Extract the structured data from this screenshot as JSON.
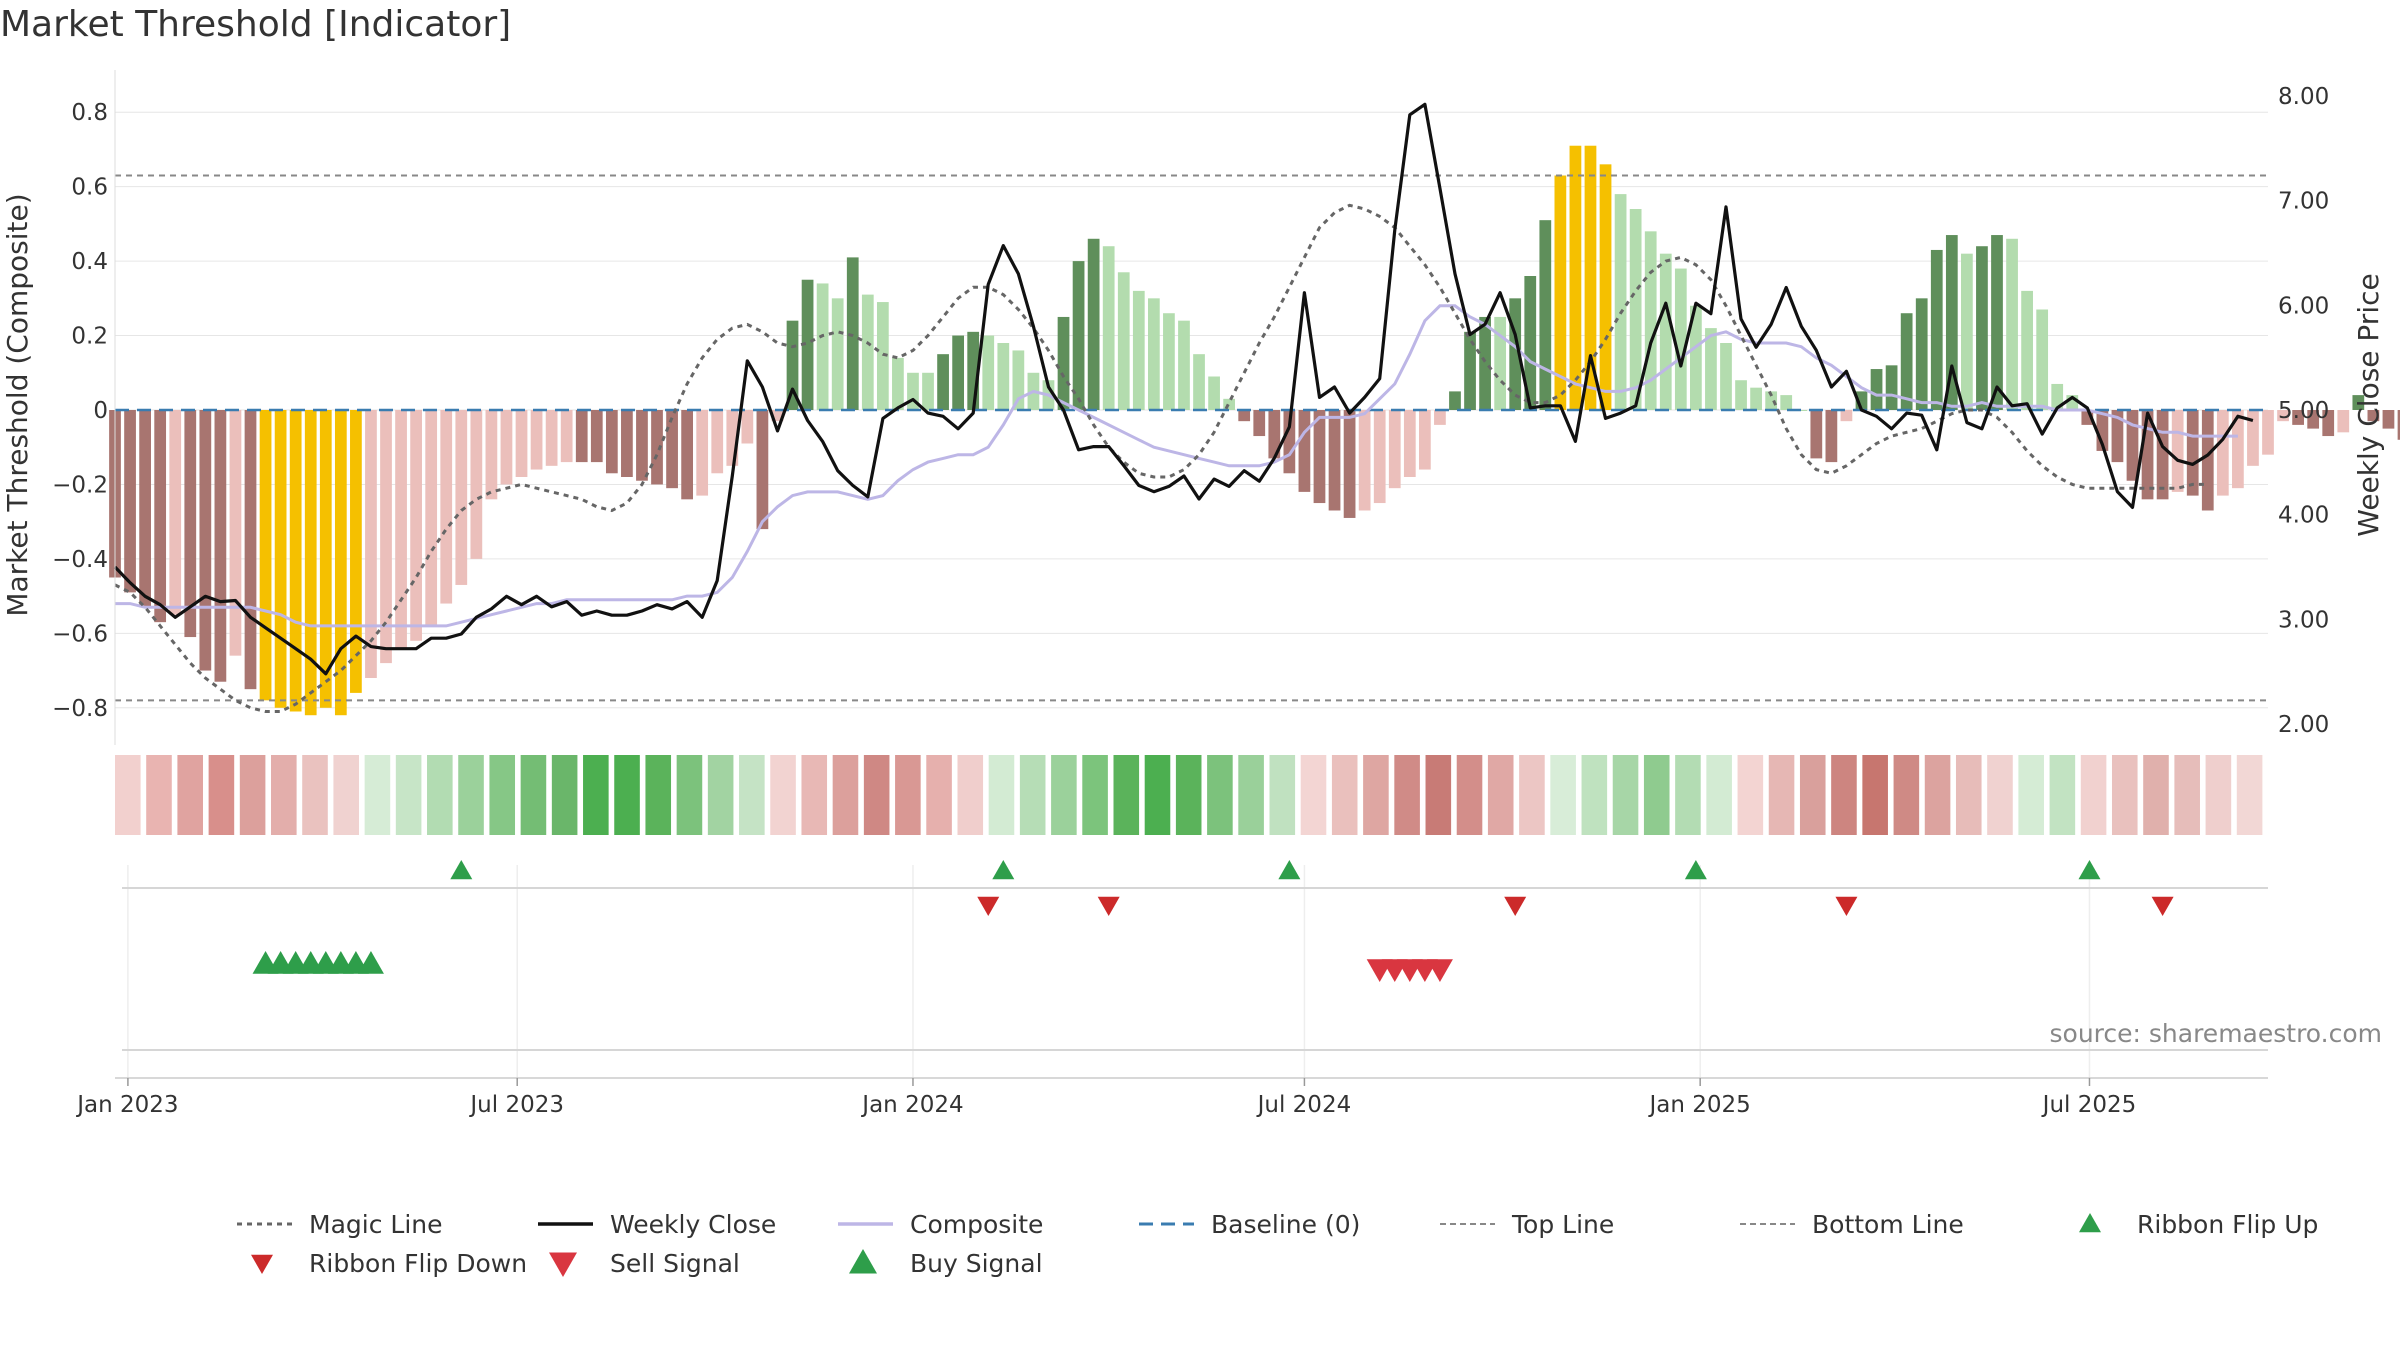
{
  "chart_data": {
    "type": "bar",
    "title": "Market Threshold [Indicator]",
    "ylabel_left": "Market Threshold (Composite)",
    "ylabel_right": "Weekly Close Price",
    "ylim_left": [
      -0.9,
      0.9
    ],
    "ylim_right": [
      1.8,
      8.2
    ],
    "yticks_left": [
      "0.8",
      "0.6",
      "0.4",
      "0.2",
      "0",
      "−0.2",
      "−0.4",
      "−0.6",
      "−0.8"
    ],
    "yticks_left_values": [
      0.8,
      0.6,
      0.4,
      0.2,
      0,
      -0.2,
      -0.4,
      -0.6,
      -0.8
    ],
    "yticks_right": [
      "8.00",
      "7.00",
      "6.00",
      "5.00",
      "4.00",
      "3.00",
      "2.00"
    ],
    "yticks_right_values": [
      8,
      7,
      6,
      5,
      4,
      3,
      2
    ],
    "xticks": [
      "Jan 2023",
      "Jul 2023",
      "Jan 2024",
      "Jul 2024",
      "Jan 2025",
      "Jul 2025"
    ],
    "xticks_dates": [
      "2023-01-01",
      "2023-07-01",
      "2024-01-01",
      "2024-07-01",
      "2025-01-01",
      "2025-07-01"
    ],
    "x_range": [
      "2022-12-26",
      "2025-09-22"
    ],
    "week_start": "2022-12-26",
    "top_line": 0.63,
    "bottom_line": -0.78,
    "baseline": 0,
    "composite_bars": [
      -0.45,
      -0.49,
      -0.53,
      -0.57,
      -0.55,
      -0.61,
      -0.7,
      -0.73,
      -0.66,
      -0.75,
      -0.78,
      -0.8,
      -0.81,
      -0.82,
      -0.8,
      -0.82,
      -0.76,
      -0.72,
      -0.68,
      -0.64,
      -0.62,
      -0.58,
      -0.52,
      -0.47,
      -0.4,
      -0.24,
      -0.2,
      -0.18,
      -0.16,
      -0.15,
      -0.14,
      -0.14,
      -0.14,
      -0.17,
      -0.18,
      -0.19,
      -0.2,
      -0.21,
      -0.24,
      -0.23,
      -0.17,
      -0.15,
      -0.09,
      -0.32,
      -0.03,
      0.24,
      0.35,
      0.34,
      0.3,
      0.41,
      0.31,
      0.29,
      0.14,
      0.1,
      0.1,
      0.15,
      0.2,
      0.21,
      0.2,
      0.18,
      0.16,
      0.1,
      0.08,
      0.25,
      0.4,
      0.46,
      0.44,
      0.37,
      0.32,
      0.3,
      0.26,
      0.24,
      0.15,
      0.09,
      0.03,
      -0.03,
      -0.07,
      -0.13,
      -0.17,
      -0.22,
      -0.25,
      -0.27,
      -0.29,
      -0.27,
      -0.25,
      -0.21,
      -0.18,
      -0.16,
      -0.04,
      0.05,
      0.21,
      0.25,
      0.25,
      0.3,
      0.36,
      0.51,
      0.63,
      0.71,
      0.71,
      0.66,
      0.58,
      0.54,
      0.48,
      0.42,
      0.38,
      0.28,
      0.22,
      0.18,
      0.08,
      0.06,
      0.05,
      0.04,
      0,
      -0.13,
      -0.14,
      -0.03,
      0.05,
      0.11,
      0.12,
      0.26,
      0.3,
      0.43,
      0.47,
      0.42,
      0.44,
      0.47,
      0.46,
      0.32,
      0.27,
      0.07,
      0.04,
      -0.04,
      -0.11,
      -0.14,
      -0.19,
      -0.24,
      -0.24,
      -0.22,
      -0.23,
      -0.27,
      -0.23,
      -0.21,
      -0.15,
      -0.12,
      -0.03,
      -0.04,
      -0.05,
      -0.07,
      -0.06,
      0.04,
      -0.03,
      -0.05,
      -0.08,
      -0.11,
      -0.14,
      -0.2,
      -0.27,
      -0.28,
      -0.18
    ],
    "weekly_close": [
      3.5,
      3.35,
      3.22,
      3.14,
      3.02,
      3.12,
      3.22,
      3.17,
      3.18,
      3.02,
      2.92,
      2.82,
      2.72,
      2.62,
      2.48,
      2.72,
      2.84,
      2.74,
      2.72,
      2.72,
      2.72,
      2.82,
      2.82,
      2.86,
      3.02,
      3.1,
      3.22,
      3.14,
      3.22,
      3.12,
      3.17,
      3.04,
      3.08,
      3.04,
      3.04,
      3.08,
      3.14,
      3.1,
      3.17,
      3.02,
      3.37,
      4.37,
      5.47,
      5.22,
      4.8,
      5.2,
      4.9,
      4.7,
      4.42,
      4.28,
      4.17,
      4.92,
      5.02,
      5.1,
      4.97,
      4.94,
      4.82,
      4.97,
      6.2,
      6.57,
      6.3,
      5.8,
      5.22,
      5.0,
      4.62,
      4.65,
      4.65,
      4.47,
      4.28,
      4.22,
      4.27,
      4.37,
      4.15,
      4.34,
      4.27,
      4.42,
      4.32,
      4.54,
      4.84,
      6.12,
      5.12,
      5.22,
      4.97,
      5.12,
      5.3,
      6.72,
      7.82,
      7.92,
      7.12,
      6.3,
      5.72,
      5.82,
      6.12,
      5.72,
      5.02,
      5.04,
      5.04,
      4.7,
      5.52,
      4.92,
      4.97,
      5.04,
      5.64,
      6.02,
      5.42,
      6.02,
      5.92,
      6.94,
      5.87,
      5.6,
      5.82,
      6.17,
      5.8,
      5.57,
      5.22,
      5.37,
      5.0,
      4.94,
      4.82,
      4.97,
      4.95,
      4.62,
      5.42,
      4.88,
      4.82,
      5.22,
      5.04,
      5.06,
      4.77,
      5.02,
      5.12,
      5.02,
      4.67,
      4.22,
      4.07,
      4.97,
      4.65,
      4.52,
      4.48,
      4.57,
      4.72,
      4.94,
      4.9
    ],
    "composite_line": [
      -0.52,
      -0.52,
      -0.53,
      -0.53,
      -0.53,
      -0.53,
      -0.53,
      -0.53,
      -0.53,
      -0.53,
      -0.54,
      -0.55,
      -0.57,
      -0.58,
      -0.58,
      -0.58,
      -0.58,
      -0.58,
      -0.58,
      -0.58,
      -0.58,
      -0.58,
      -0.58,
      -0.57,
      -0.56,
      -0.55,
      -0.54,
      -0.53,
      -0.52,
      -0.52,
      -0.51,
      -0.51,
      -0.51,
      -0.51,
      -0.51,
      -0.51,
      -0.51,
      -0.51,
      -0.5,
      -0.5,
      -0.49,
      -0.45,
      -0.38,
      -0.3,
      -0.26,
      -0.23,
      -0.22,
      -0.22,
      -0.22,
      -0.23,
      -0.24,
      -0.23,
      -0.19,
      -0.16,
      -0.14,
      -0.13,
      -0.12,
      -0.12,
      -0.1,
      -0.04,
      0.03,
      0.05,
      0.04,
      0.02,
      0,
      -0.02,
      -0.04,
      -0.06,
      -0.08,
      -0.1,
      -0.11,
      -0.12,
      -0.13,
      -0.14,
      -0.15,
      -0.15,
      -0.15,
      -0.14,
      -0.12,
      -0.06,
      -0.02,
      -0.02,
      -0.02,
      -0.01,
      0.03,
      0.07,
      0.15,
      0.24,
      0.28,
      0.28,
      0.25,
      0.23,
      0.2,
      0.17,
      0.13,
      0.11,
      0.09,
      0.07,
      0.06,
      0.05,
      0.05,
      0.06,
      0.08,
      0.11,
      0.14,
      0.17,
      0.2,
      0.21,
      0.19,
      0.18,
      0.18,
      0.18,
      0.17,
      0.14,
      0.12,
      0.09,
      0.06,
      0.04,
      0.04,
      0.03,
      0.02,
      0.02,
      0.01,
      0.01,
      0.02,
      0.01,
      0.01,
      0.01,
      0.01,
      0.0,
      0.0,
      0.0,
      -0.01,
      -0.02,
      -0.04,
      -0.05,
      -0.06,
      -0.06,
      -0.07,
      -0.07,
      -0.07,
      -0.07
    ],
    "magic_line": [
      -0.47,
      -0.49,
      -0.53,
      -0.58,
      -0.63,
      -0.68,
      -0.72,
      -0.75,
      -0.78,
      -0.8,
      -0.81,
      -0.81,
      -0.79,
      -0.76,
      -0.73,
      -0.7,
      -0.66,
      -0.62,
      -0.57,
      -0.51,
      -0.45,
      -0.38,
      -0.32,
      -0.27,
      -0.24,
      -0.22,
      -0.21,
      -0.2,
      -0.21,
      -0.22,
      -0.23,
      -0.24,
      -0.26,
      -0.27,
      -0.25,
      -0.2,
      -0.12,
      -0.02,
      0.07,
      0.14,
      0.19,
      0.22,
      0.23,
      0.21,
      0.18,
      0.17,
      0.18,
      0.2,
      0.21,
      0.2,
      0.18,
      0.15,
      0.14,
      0.16,
      0.2,
      0.25,
      0.3,
      0.33,
      0.33,
      0.31,
      0.27,
      0.22,
      0.16,
      0.09,
      0.03,
      -0.04,
      -0.1,
      -0.14,
      -0.17,
      -0.18,
      -0.18,
      -0.16,
      -0.12,
      -0.06,
      0.02,
      0.1,
      0.18,
      0.25,
      0.33,
      0.41,
      0.49,
      0.53,
      0.55,
      0.54,
      0.52,
      0.49,
      0.44,
      0.39,
      0.33,
      0.26,
      0.19,
      0.13,
      0.08,
      0.04,
      0.02,
      0.02,
      0.04,
      0.08,
      0.13,
      0.19,
      0.26,
      0.32,
      0.37,
      0.4,
      0.41,
      0.39,
      0.35,
      0.28,
      0.2,
      0.12,
      0.04,
      -0.05,
      -0.12,
      -0.16,
      -0.17,
      -0.15,
      -0.12,
      -0.09,
      -0.07,
      -0.06,
      -0.05,
      -0.03,
      -0.01,
      0.0,
      0.0,
      -0.02,
      -0.06,
      -0.11,
      -0.15,
      -0.18,
      -0.2,
      -0.21,
      -0.21,
      -0.21,
      -0.21,
      -0.21,
      -0.21,
      -0.21,
      -0.2,
      -0.2
    ],
    "ribbon_flip_up": [
      "2023-06-05",
      "2024-02-12",
      "2024-06-24",
      "2024-12-30",
      "2025-07-01"
    ],
    "ribbon_flip_down": [
      "2024-02-05",
      "2024-04-01",
      "2024-10-07",
      "2025-03-10",
      "2025-08-04"
    ],
    "buy_signal": [
      "2023-03-06",
      "2023-03-13",
      "2023-03-20",
      "2023-03-27",
      "2023-04-03",
      "2023-04-10",
      "2023-04-17",
      "2023-04-24"
    ],
    "sell_signal": [
      "2024-08-05",
      "2024-08-12",
      "2024-08-19",
      "2024-08-26",
      "2024-09-02"
    ],
    "ribbon_colors": [
      "#f2d0ce",
      "#e9b4b1",
      "#e0a3a0",
      "#d88f8b",
      "#dca09c",
      "#e3aeab",
      "#eac2bf",
      "#f0d2d0",
      "#d6ecd6",
      "#c7e5c7",
      "#b2dcb2",
      "#9bd19b",
      "#86c786",
      "#74bd74",
      "#6ab66a",
      "#4caf50",
      "#4caf50",
      "#5bb35b",
      "#7cc27c",
      "#a2d3a2",
      "#c5e3c5",
      "#f2d3d1",
      "#e8b8b5",
      "#dca09c",
      "#cf8884",
      "#d99894",
      "#e6b0ad",
      "#f0cecc",
      "#d3ebd3",
      "#b6ddb6",
      "#9bd19b",
      "#7cc47c",
      "#5bb35b",
      "#4caf50",
      "#5bb35b",
      "#7cc27c",
      "#9ad09a",
      "#c0e1c0",
      "#f3d5d3",
      "#eac0bd",
      "#dea6a2",
      "#d08b87",
      "#c87b76",
      "#d38e8a",
      "#e0a8a5",
      "#ecc6c4",
      "#d8edd8",
      "#bfe2bf",
      "#a7d6a7",
      "#8fcb8f",
      "#b3dcb3",
      "#d3ebd3",
      "#f3d4d2",
      "#e6b7b4",
      "#d9a09c",
      "#cd8580",
      "#c7766f",
      "#cf8a85",
      "#dca39f",
      "#e7bcb9",
      "#f0d2d0",
      "#d5ecd5",
      "#c2e3c2",
      "#f1d1cf",
      "#e9c1be",
      "#e0b0ac",
      "#e6bdba",
      "#efcfcd",
      "#f2d7d5"
    ],
    "legend": [
      "Magic Line",
      "Weekly Close",
      "Composite",
      "Baseline (0)",
      "Top Line",
      "Bottom Line",
      "Ribbon Flip Up",
      "Ribbon Flip Down",
      "Sell Signal",
      "Buy Signal"
    ],
    "source": "source: sharemaestro.com",
    "colors": {
      "bear_dark": "#a87570",
      "bear_light": "#ebbfbb",
      "bull_dark": "#5f8f5b",
      "bull_light": "#b3dcae",
      "extreme": "#f5c000",
      "weekly_close": "#111111",
      "composite": "#bdb6e6",
      "magic_line": "#666666",
      "baseline": "#3a7cb0",
      "threshold_lines": "#888888",
      "up_marker": "#2e9e4a",
      "down_marker": "#d93640",
      "grid": "#e6e6e6"
    },
    "legend_placement": "bottom"
  }
}
